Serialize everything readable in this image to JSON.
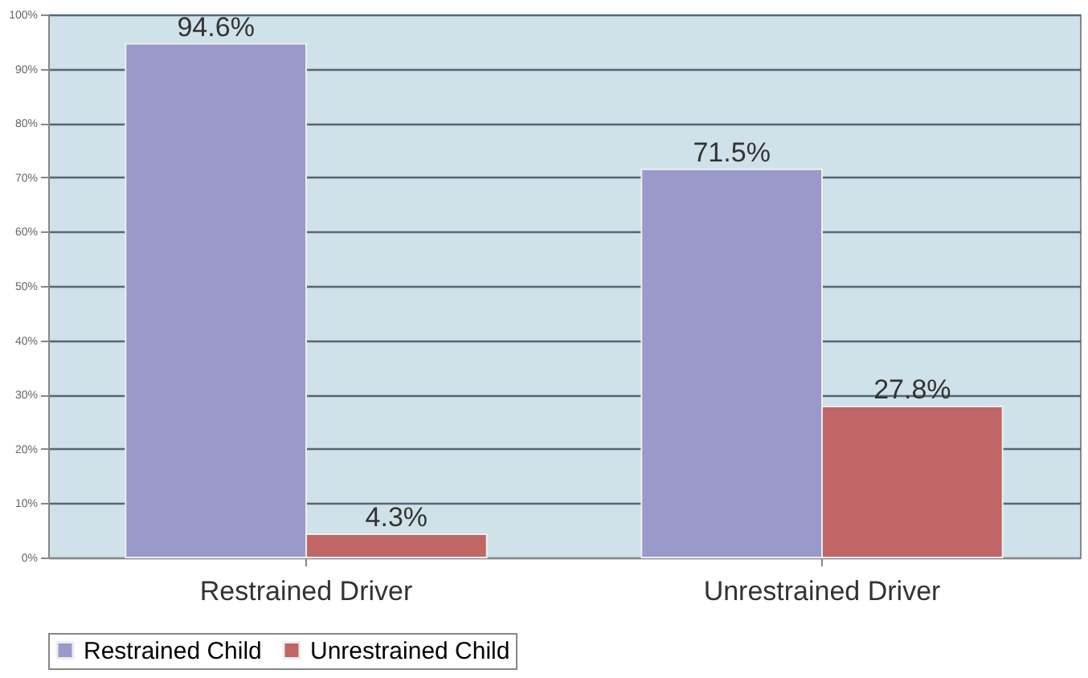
{
  "chart_data": {
    "type": "bar",
    "categories": [
      "Restrained Driver",
      "Unrestrained Driver"
    ],
    "series": [
      {
        "name": "Restrained Child",
        "color": "#9999cc",
        "values": [
          94.6,
          71.5
        ],
        "value_labels": [
          "94.6%",
          "71.5%"
        ]
      },
      {
        "name": "Unrestrained Child",
        "color": "#c06666",
        "values": [
          4.3,
          27.8
        ],
        "value_labels": [
          "4.3%",
          "27.8%"
        ]
      }
    ],
    "ylim": [
      0,
      100
    ],
    "yticks": [
      {
        "value": 0,
        "label": "0%"
      },
      {
        "value": 10,
        "label": "10%"
      },
      {
        "value": 20,
        "label": "20%"
      },
      {
        "value": 30,
        "label": "30%"
      },
      {
        "value": 40,
        "label": "40%"
      },
      {
        "value": 50,
        "label": "50%"
      },
      {
        "value": 60,
        "label": "60%"
      },
      {
        "value": 70,
        "label": "70%"
      },
      {
        "value": 80,
        "label": "80%"
      },
      {
        "value": 90,
        "label": "90%"
      },
      {
        "value": 100,
        "label": "100%"
      }
    ],
    "grid": "y",
    "legend": "bottom"
  }
}
